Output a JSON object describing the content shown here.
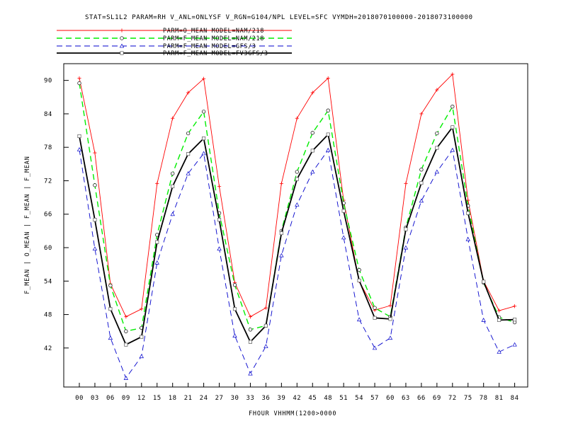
{
  "chart_data": {
    "type": "line",
    "title": "STAT=SL1L2 PARAM=RH V_ANL=ONLYSF V_RGN=G104/NPL LEVEL=SFC VYMDH=2018070100000-2018073100000",
    "xlabel": "FHOUR VHHMM(1200>0000",
    "ylabel": "F_MEAN | O_MEAN | F_MEAN | F_MEAN",
    "categories": [
      "00",
      "03",
      "06",
      "09",
      "12",
      "15",
      "18",
      "21",
      "24",
      "27",
      "30",
      "33",
      "36",
      "39",
      "42",
      "45",
      "48",
      "51",
      "54",
      "57",
      "60",
      "63",
      "66",
      "69",
      "72",
      "75",
      "78",
      "81",
      "84"
    ],
    "ylim": [
      35,
      93
    ],
    "yticks": [
      42,
      48,
      54,
      60,
      66,
      72,
      78,
      84,
      90
    ],
    "grid": false,
    "legend_position": "top-left",
    "series": [
      {
        "name": "PARM=O_MEAN MODEL=NAM/218",
        "color": "#ff0000",
        "dash": "solid",
        "marker": "plus",
        "values": [
          90.4,
          77.0,
          53.5,
          47.6,
          49.0,
          71.5,
          83.2,
          87.8,
          90.3,
          71.0,
          53.7,
          47.6,
          49.2,
          71.5,
          83.2,
          87.8,
          90.4,
          68.5,
          54.0,
          48.8,
          49.6,
          71.5,
          84.0,
          88.3,
          91.1,
          68.5,
          54.0,
          48.7,
          49.5
        ]
      },
      {
        "name": "PARM=F_MEAN MODEL=NAM/218",
        "color": "#00ee00",
        "dash": "dashed",
        "marker": "circle",
        "values": [
          89.5,
          71.2,
          53.2,
          45.0,
          45.6,
          62.3,
          73.3,
          80.5,
          84.4,
          66.2,
          53.3,
          45.3,
          46.0,
          63.0,
          73.6,
          80.6,
          84.6,
          68.0,
          56.0,
          49.2,
          47.6,
          63.6,
          74.0,
          80.5,
          85.3,
          67.5,
          53.7,
          47.5,
          46.6
        ]
      },
      {
        "name": "PARM=F_MEAN MODEL=GFS/3",
        "color": "#0000cc",
        "dash": "dashed",
        "marker": "triangle",
        "values": [
          77.6,
          59.8,
          43.8,
          36.6,
          40.5,
          57.3,
          66.0,
          73.3,
          76.9,
          59.8,
          44.2,
          37.4,
          42.3,
          58.6,
          67.7,
          73.6,
          77.5,
          61.8,
          47.1,
          42.0,
          43.8,
          60.0,
          68.4,
          73.6,
          77.5,
          61.5,
          47.0,
          41.3,
          42.6
        ]
      },
      {
        "name": "PARM=F_MEAN MODEL=FV3GFS/3",
        "color": "#000000",
        "dash": "solid",
        "marker": "square",
        "values": [
          80.0,
          65.0,
          49.0,
          42.6,
          44.0,
          61.0,
          71.0,
          76.8,
          79.6,
          65.0,
          49.0,
          43.1,
          46.0,
          62.6,
          72.3,
          77.4,
          80.3,
          66.6,
          54.1,
          47.4,
          47.2,
          63.3,
          71.6,
          77.9,
          81.6,
          66.2,
          53.9,
          47.0,
          47.1
        ]
      }
    ]
  }
}
